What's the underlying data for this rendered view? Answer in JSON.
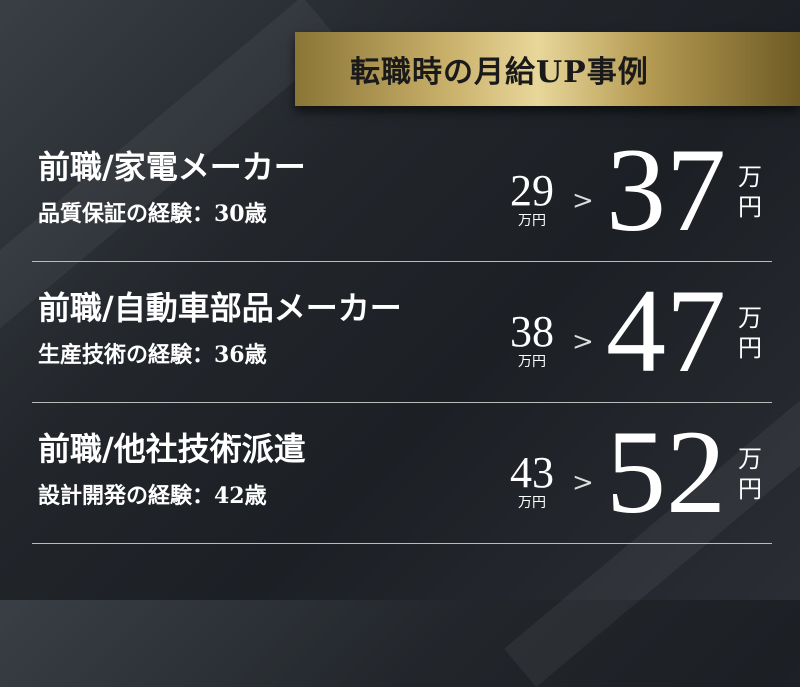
{
  "banner": {
    "title": "転職時の月給UP事例"
  },
  "cases": [
    {
      "title": "前職/家電メーカー",
      "subtitle": "品質保証の経験：30歳",
      "before": "29",
      "before_unit": "万円",
      "after": "37",
      "after_unit": "万円"
    },
    {
      "title": "前職/自動車部品メーカー",
      "subtitle": "生産技術の経験：36歳",
      "before": "38",
      "before_unit": "万円",
      "after": "47",
      "after_unit": "万円"
    },
    {
      "title": "前職/他社技術派遣",
      "subtitle": "設計開発の経験：42歳",
      "before": "43",
      "before_unit": "万円",
      "after": "52",
      "after_unit": "万円"
    }
  ],
  "colors": {
    "gold": "#c9b06a",
    "background": "#22262b"
  }
}
